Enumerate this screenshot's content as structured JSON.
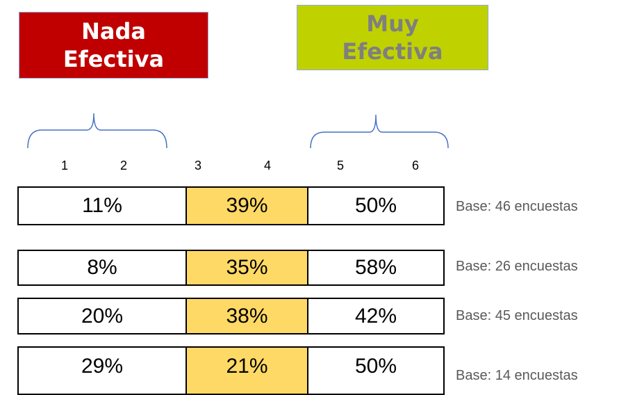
{
  "labels": {
    "low": "Nada Efectiva",
    "high": "Muy Efectiva"
  },
  "scale": [
    "1",
    "2",
    "3",
    "4",
    "5",
    "6"
  ],
  "rows": [
    {
      "cells": [
        "11%",
        "39%",
        "50%"
      ],
      "base": "Base: 46 encuestas"
    },
    {
      "cells": [
        "8%",
        "35%",
        "58%"
      ],
      "base": "Base: 26 encuestas"
    },
    {
      "cells": [
        "20%",
        "38%",
        "42%"
      ],
      "base": "Base: 45 encuestas"
    },
    {
      "cells": [
        "29%",
        "21%",
        "50%"
      ],
      "base": "Base: 14 encuestas"
    }
  ]
}
